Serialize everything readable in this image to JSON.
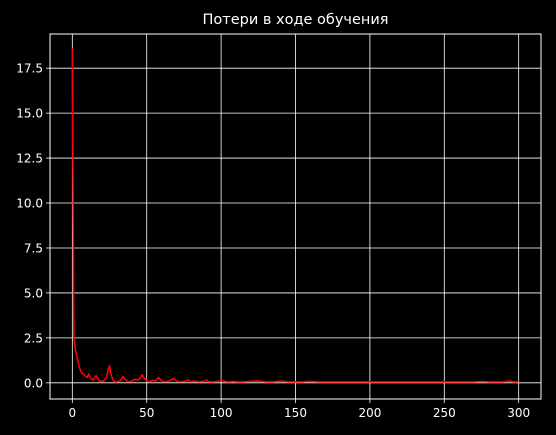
{
  "colors": {
    "background": "#000000",
    "axis": "#ffffff",
    "grid": "#ffffff",
    "text": "#ffffff",
    "line": "#ff0000"
  },
  "chart_data": {
    "type": "line",
    "title": "Потери в ходе обучения",
    "xlabel": "",
    "ylabel": "",
    "xlim": [
      -15,
      315
    ],
    "ylim": [
      -0.9,
      19.4
    ],
    "grid": true,
    "xticks": [
      0,
      50,
      100,
      150,
      200,
      250,
      300
    ],
    "xtick_labels": [
      "0",
      "50",
      "100",
      "150",
      "200",
      "250",
      "300"
    ],
    "yticks": [
      0.0,
      2.5,
      5.0,
      7.5,
      10.0,
      12.5,
      15.0,
      17.5
    ],
    "ytick_labels": [
      "0.0",
      "2.5",
      "5.0",
      "7.5",
      "10.0",
      "12.5",
      "15.0",
      "17.5"
    ],
    "series": [
      {
        "color": "#ff0000",
        "x": [
          0,
          1,
          2,
          3,
          4,
          5,
          6,
          7,
          8,
          9,
          10,
          11,
          12,
          13,
          14,
          15,
          16,
          17,
          18,
          19,
          20,
          21,
          22,
          23,
          24,
          25,
          26,
          27,
          28,
          29,
          30,
          32,
          34,
          35,
          36,
          38,
          40,
          42,
          44,
          46,
          47,
          48,
          50,
          52,
          54,
          56,
          58,
          60,
          62,
          65,
          68,
          70,
          72,
          75,
          78,
          80,
          82,
          85,
          88,
          90,
          92,
          95,
          98,
          100,
          102,
          104,
          106,
          108,
          110,
          115,
          120,
          125,
          130,
          135,
          140,
          145,
          150,
          155,
          160,
          165,
          170,
          175,
          180,
          190,
          200,
          210,
          220,
          230,
          240,
          250,
          260,
          270,
          275,
          280,
          285,
          290,
          294,
          296,
          300
        ],
        "values": [
          18.6,
          2.5,
          1.9,
          1.5,
          1.1,
          0.8,
          0.6,
          0.5,
          0.45,
          0.35,
          0.3,
          0.5,
          0.3,
          0.2,
          0.15,
          0.3,
          0.4,
          0.25,
          0.1,
          0.1,
          0.08,
          0.1,
          0.2,
          0.3,
          0.7,
          0.95,
          0.5,
          0.2,
          0.1,
          0.05,
          0.05,
          0.1,
          0.35,
          0.25,
          0.15,
          0.05,
          0.1,
          0.2,
          0.15,
          0.3,
          0.45,
          0.3,
          0.1,
          0.05,
          0.15,
          0.1,
          0.3,
          0.1,
          0.05,
          0.1,
          0.25,
          0.1,
          0.05,
          0.08,
          0.15,
          0.05,
          0.1,
          0.05,
          0.08,
          0.15,
          0.05,
          0.05,
          0.08,
          0.15,
          0.1,
          0.05,
          0.05,
          0.08,
          0.05,
          0.05,
          0.08,
          0.1,
          0.05,
          0.05,
          0.1,
          0.05,
          0.05,
          0.05,
          0.08,
          0.05,
          0.05,
          0.05,
          0.05,
          0.05,
          0.05,
          0.05,
          0.05,
          0.05,
          0.05,
          0.05,
          0.05,
          0.05,
          0.08,
          0.05,
          0.05,
          0.05,
          0.1,
          0.05,
          0.05
        ]
      }
    ]
  }
}
